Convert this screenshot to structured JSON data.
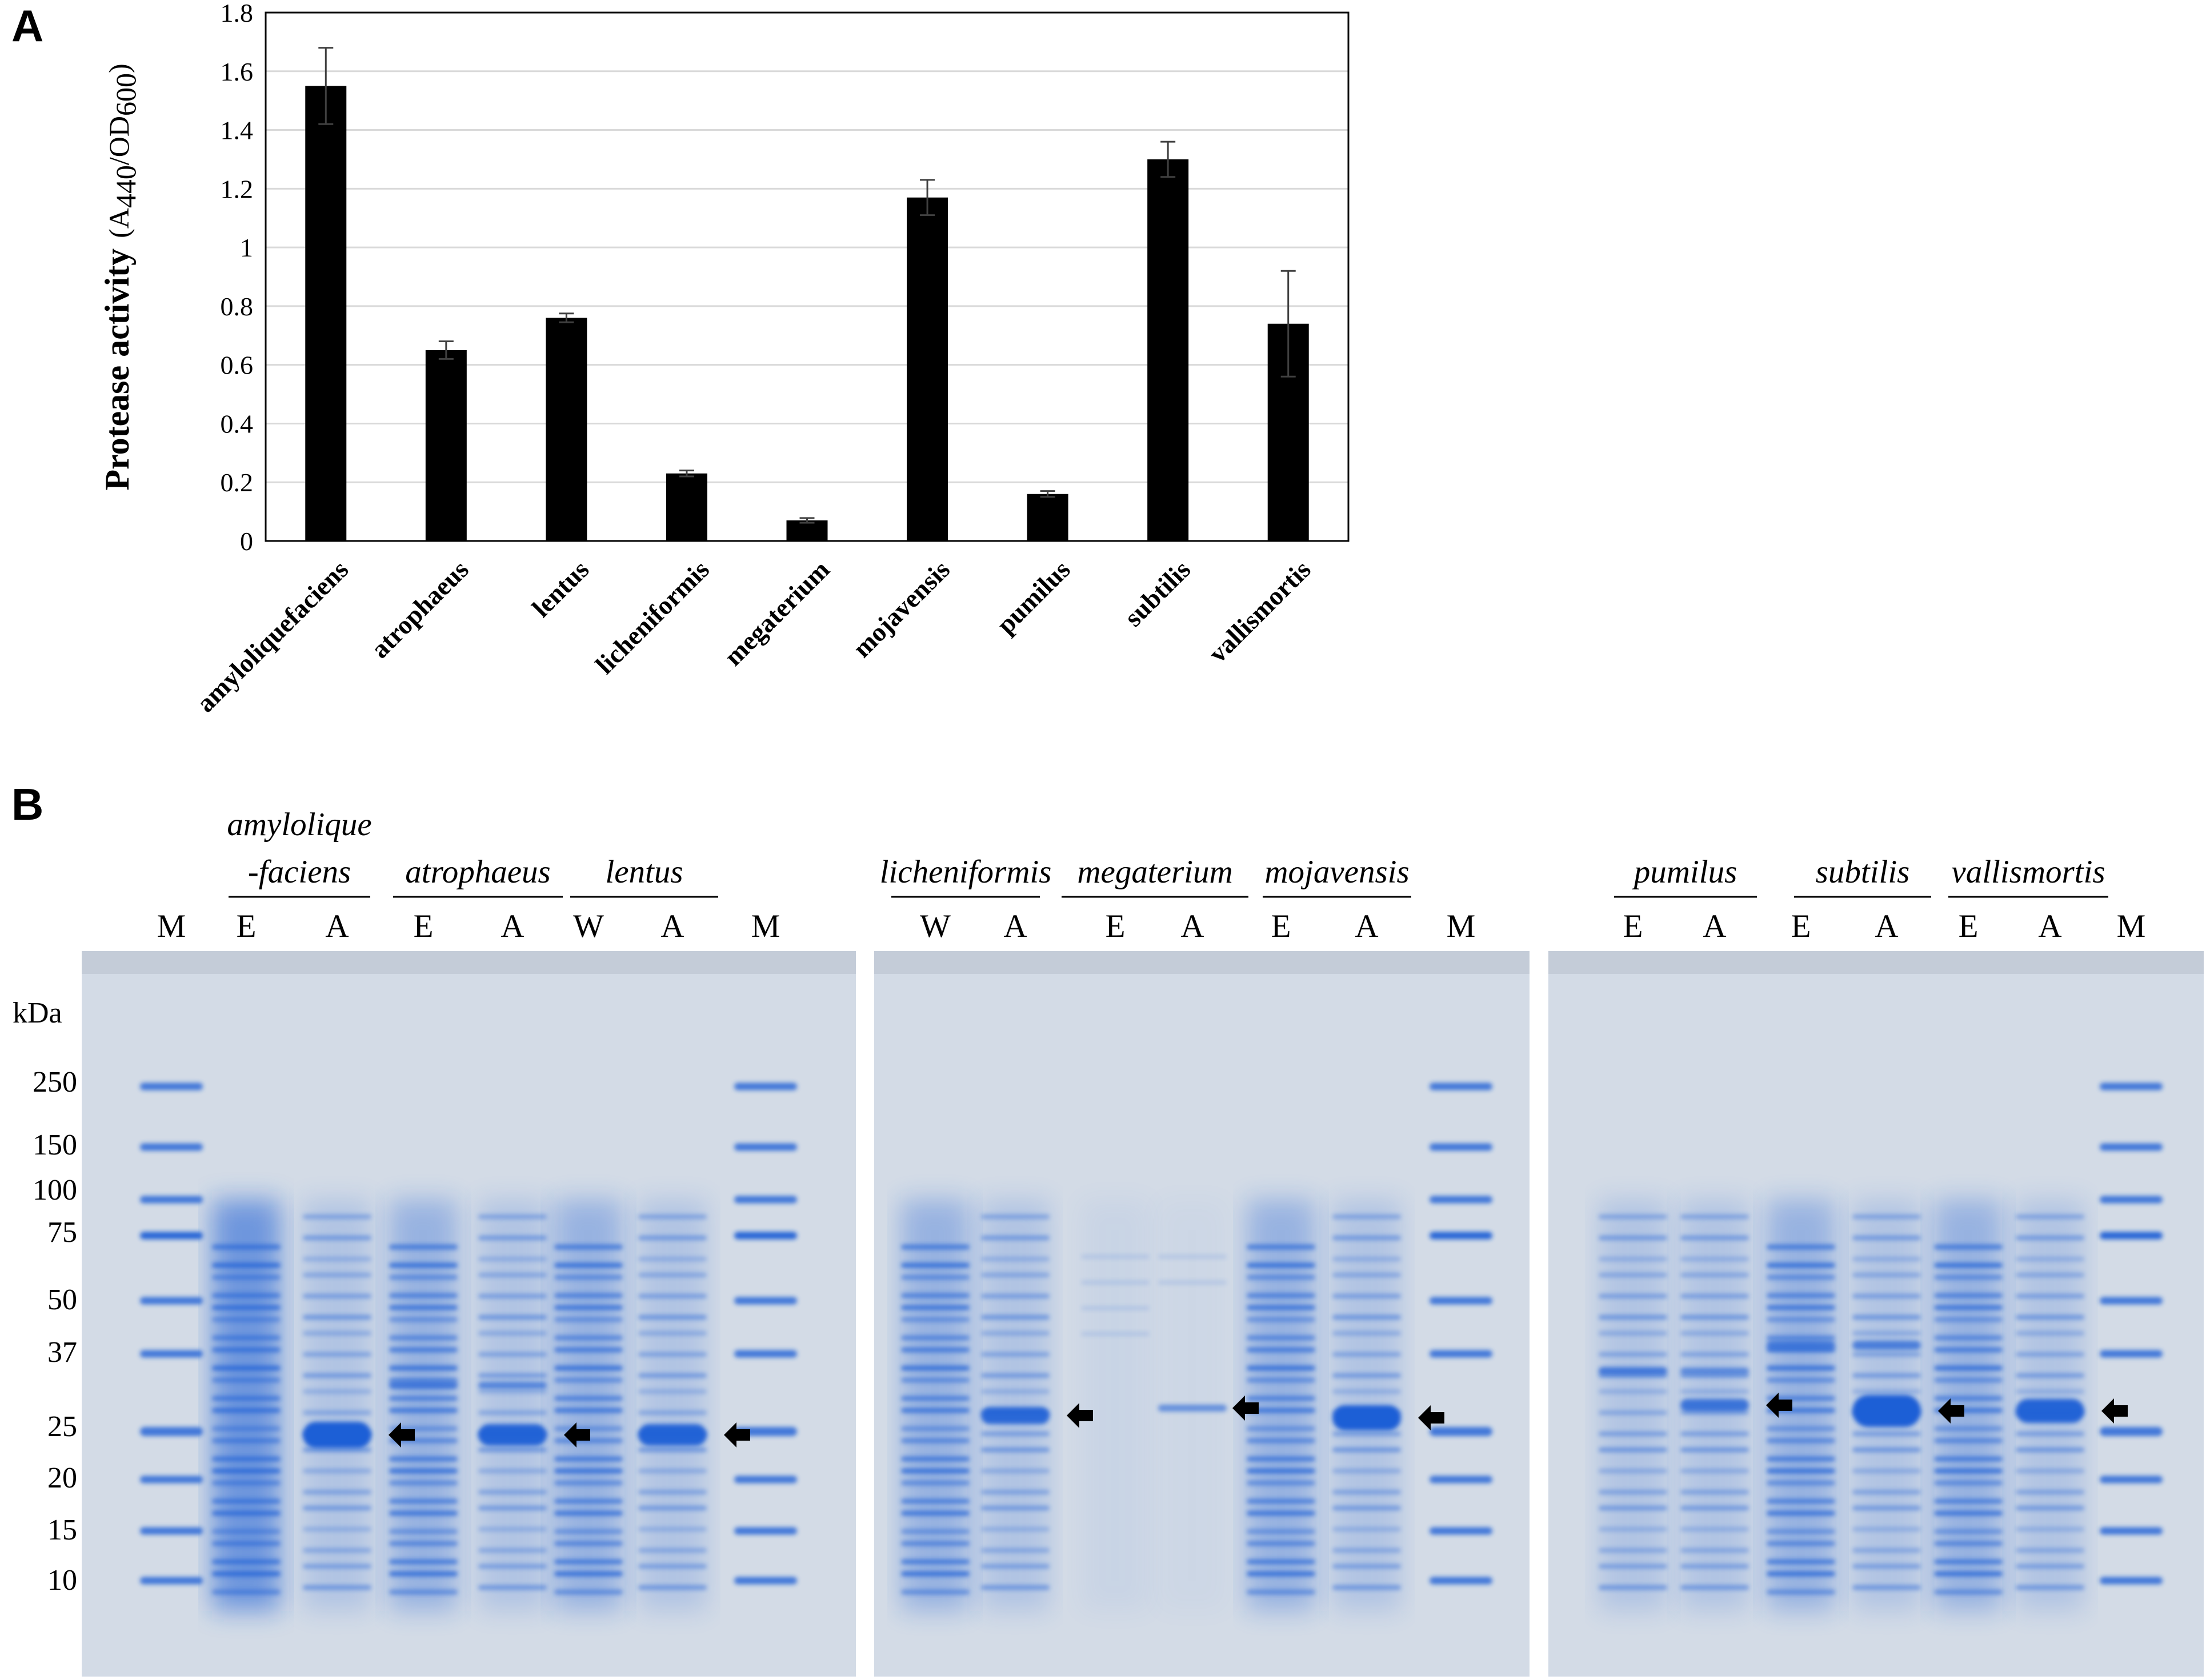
{
  "panel_a_label": "A",
  "panel_b_label": "B",
  "chart_data": {
    "type": "bar",
    "categories": [
      "amyloliquefaciens",
      "atrophaeus",
      "lentus",
      "licheniformis",
      "megaterium",
      "mojavensis",
      "pumilus",
      "subtilis",
      "vallismortis"
    ],
    "values": [
      1.55,
      0.65,
      0.76,
      0.23,
      0.07,
      1.17,
      0.16,
      1.3,
      0.74
    ],
    "errors": [
      0.13,
      0.03,
      0.015,
      0.01,
      0.008,
      0.06,
      0.01,
      0.06,
      0.18
    ],
    "ylabel_main": "Protease activity",
    "ylabel_unit": "(A440/OD600)",
    "ylabel_unit_parts": {
      "open": "(A",
      "sub1": "440",
      "mid": "/OD",
      "sub2": "600",
      "close": ")"
    },
    "ylim": [
      0,
      1.8
    ],
    "yticks": [
      "0",
      "0.2",
      "0.4",
      "0.6",
      "0.8",
      "1",
      "1.2",
      "1.4",
      "1.6",
      "1.8"
    ],
    "grid": true,
    "bar_color": "#000000",
    "grid_color": "#d9d9d9"
  },
  "gel": {
    "kda_label": "kDa",
    "markers": [
      "250",
      "150",
      "100",
      "75",
      "50",
      "37",
      "25",
      "20",
      "15",
      "10"
    ],
    "gel_color": "#d3dbe6",
    "stain_color": "#1f5fd6",
    "gels": [
      {
        "groups": [
          {
            "line1": "amylolique",
            "line2": "-faciens"
          },
          {
            "line1": "",
            "line2": "atrophaeus"
          },
          {
            "line1": "",
            "line2": "lentus"
          }
        ],
        "lanes": [
          "M",
          "E",
          "A",
          "E",
          "A",
          "W",
          "A",
          "M"
        ]
      },
      {
        "groups": [
          {
            "line1": "",
            "line2": "licheniformis"
          },
          {
            "line1": "",
            "line2": "megaterium"
          },
          {
            "line1": "",
            "line2": "mojavensis"
          }
        ],
        "lanes": [
          "W",
          "A",
          "E",
          "A",
          "E",
          "A",
          "M"
        ]
      },
      {
        "groups": [
          {
            "line1": "",
            "line2": "pumilus"
          },
          {
            "line1": "",
            "line2": "subtilis"
          },
          {
            "line1": "",
            "line2": "vallismortis"
          }
        ],
        "lanes": [
          "E",
          "A",
          "E",
          "A",
          "E",
          "A",
          "M"
        ]
      }
    ]
  }
}
